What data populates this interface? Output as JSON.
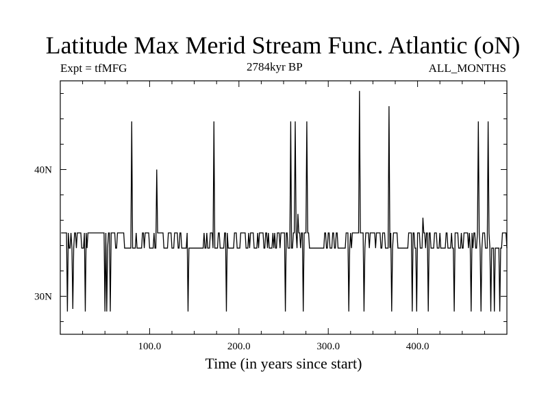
{
  "chart_data": {
    "type": "line",
    "title": "Latitude Max Merid Stream Func. Atlantic (oN)",
    "subtitle_left": "Expt = tfMFG",
    "subtitle_center": "2784kyr BP",
    "subtitle_right": "ALL_MONTHS",
    "xlabel": "Time (in years since start)",
    "ylabel": "",
    "xlim": [
      0,
      500
    ],
    "ylim": [
      27,
      47
    ],
    "x_ticks": [
      {
        "value": 100,
        "label": "100.0"
      },
      {
        "value": 200,
        "label": "200.0"
      },
      {
        "value": 300,
        "label": "300.0"
      },
      {
        "value": 400,
        "label": "400.0"
      }
    ],
    "y_ticks": [
      {
        "value": 30,
        "label": "30N"
      },
      {
        "value": 40,
        "label": "40N"
      }
    ],
    "grid": false,
    "baseline_levels": [
      33.8,
      35.0
    ],
    "spikes": [
      {
        "x": 8,
        "y": 28.8
      },
      {
        "x": 14,
        "y": 29
      },
      {
        "x": 28,
        "y": 28.8
      },
      {
        "x": 50,
        "y": 28.8
      },
      {
        "x": 52,
        "y": 28.8
      },
      {
        "x": 56,
        "y": 28.8
      },
      {
        "x": 80,
        "y": 43.8
      },
      {
        "x": 108,
        "y": 40.0
      },
      {
        "x": 143,
        "y": 28.8
      },
      {
        "x": 172,
        "y": 43.8
      },
      {
        "x": 186,
        "y": 28.8
      },
      {
        "x": 252,
        "y": 28.8
      },
      {
        "x": 258,
        "y": 43.8
      },
      {
        "x": 263,
        "y": 43.8
      },
      {
        "x": 266,
        "y": 36.5
      },
      {
        "x": 272,
        "y": 28.8
      },
      {
        "x": 276,
        "y": 43.8
      },
      {
        "x": 323,
        "y": 28.8
      },
      {
        "x": 335,
        "y": 46.2
      },
      {
        "x": 340,
        "y": 28.8
      },
      {
        "x": 368,
        "y": 45.0
      },
      {
        "x": 371,
        "y": 28.8
      },
      {
        "x": 394,
        "y": 28.8
      },
      {
        "x": 399,
        "y": 28.8
      },
      {
        "x": 406,
        "y": 36.2
      },
      {
        "x": 412,
        "y": 28.8
      },
      {
        "x": 441,
        "y": 28.8
      },
      {
        "x": 460,
        "y": 28.8
      },
      {
        "x": 468,
        "y": 43.8
      },
      {
        "x": 471,
        "y": 28.8
      },
      {
        "x": 479,
        "y": 43.8
      },
      {
        "x": 482,
        "y": 28.8
      },
      {
        "x": 486,
        "y": 28.8
      },
      {
        "x": 492,
        "y": 28.8
      }
    ]
  }
}
